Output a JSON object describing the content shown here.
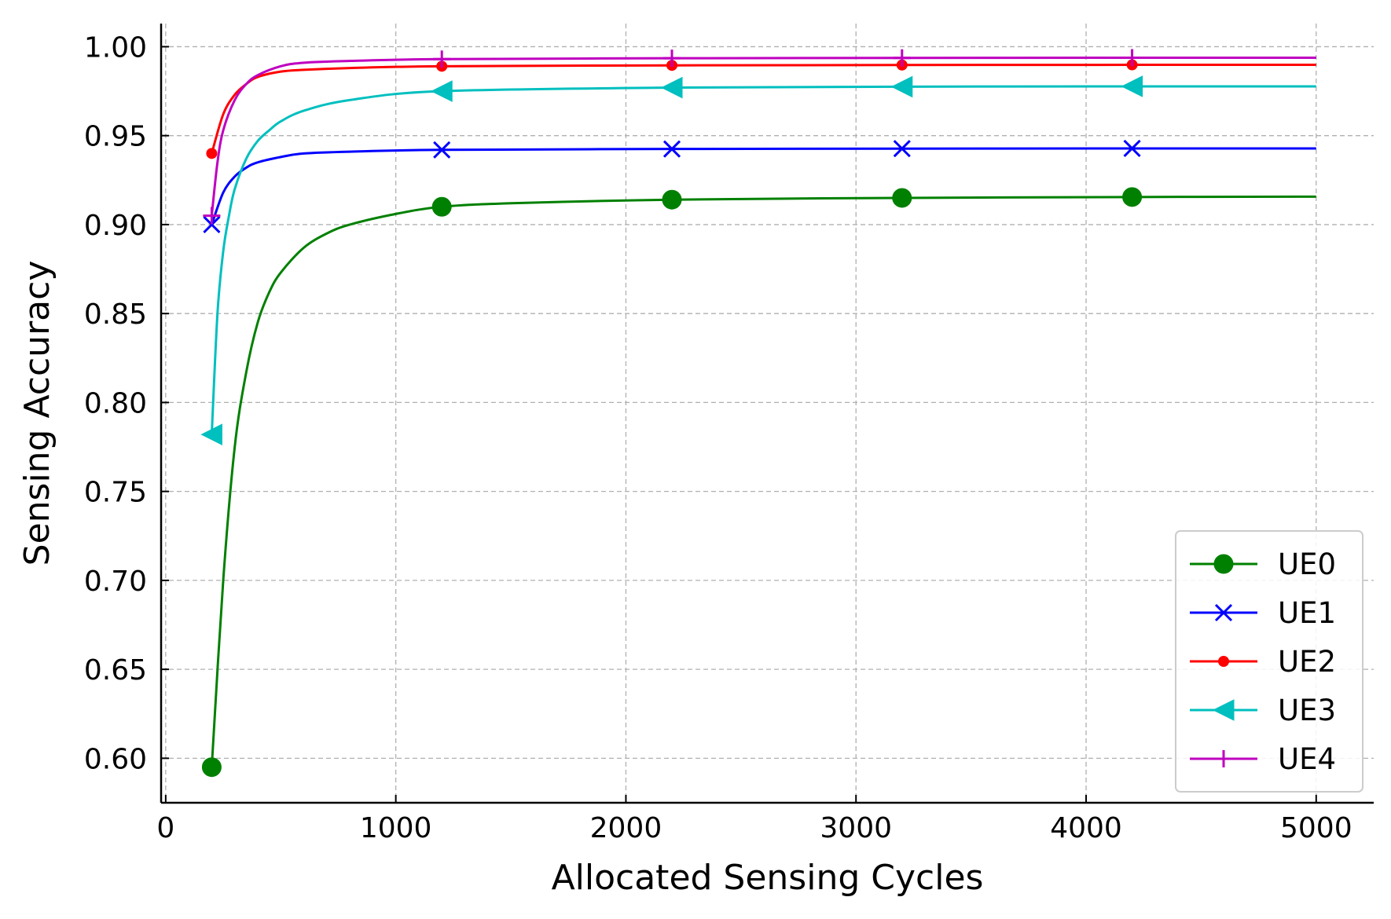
{
  "chart_data": {
    "type": "line",
    "xlabel": "Allocated Sensing Cycles",
    "ylabel": "Sensing Accuracy",
    "xlim": [
      -20,
      5250
    ],
    "ylim": [
      0.575,
      1.013
    ],
    "xticks": [
      0,
      1000,
      2000,
      3000,
      4000,
      5000
    ],
    "xtick_labels": [
      "0",
      "1000",
      "2000",
      "3000",
      "4000",
      "5000"
    ],
    "yticks": [
      0.6,
      0.65,
      0.7,
      0.75,
      0.8,
      0.85,
      0.9,
      0.95,
      1.0
    ],
    "ytick_labels": [
      "0.60",
      "0.65",
      "0.70",
      "0.75",
      "0.80",
      "0.85",
      "0.90",
      "0.95",
      "1.00"
    ],
    "grid": true,
    "legend_position": "lower-right",
    "marker_x": [
      200,
      1200,
      2200,
      3200,
      4200
    ],
    "series": [
      {
        "name": "UE0",
        "color": "#008000",
        "marker": "circle",
        "x": [
          200,
          250,
          300,
          350,
          400,
          450,
          500,
          600,
          700,
          800,
          1000,
          1200,
          1500,
          2200,
          3200,
          4200,
          5000
        ],
        "y": [
          0.595,
          0.7,
          0.775,
          0.817,
          0.845,
          0.862,
          0.873,
          0.887,
          0.895,
          0.9,
          0.906,
          0.91,
          0.912,
          0.914,
          0.915,
          0.9155,
          0.9157
        ]
      },
      {
        "name": "UE1",
        "color": "#0000ff",
        "marker": "x",
        "x": [
          200,
          250,
          300,
          350,
          400,
          500,
          600,
          800,
          1200,
          2200,
          3200,
          4200,
          5000
        ],
        "y": [
          0.9,
          0.918,
          0.927,
          0.932,
          0.935,
          0.938,
          0.94,
          0.941,
          0.942,
          0.9425,
          0.9427,
          0.9428,
          0.9428
        ]
      },
      {
        "name": "UE2",
        "color": "#ff0000",
        "marker": "dot",
        "x": [
          200,
          250,
          300,
          350,
          400,
          500,
          600,
          800,
          1200,
          2200,
          3200,
          4200,
          5000
        ],
        "y": [
          0.94,
          0.962,
          0.973,
          0.979,
          0.983,
          0.986,
          0.987,
          0.988,
          0.989,
          0.9895,
          0.9897,
          0.9898,
          0.9898
        ]
      },
      {
        "name": "UE3",
        "color": "#00bfbf",
        "marker": "triangle-left",
        "x": [
          200,
          225,
          250,
          275,
          300,
          350,
          400,
          450,
          500,
          600,
          800,
          1200,
          2200,
          3200,
          4200,
          5000
        ],
        "y": [
          0.782,
          0.85,
          0.885,
          0.905,
          0.92,
          0.937,
          0.947,
          0.953,
          0.958,
          0.964,
          0.97,
          0.975,
          0.977,
          0.9775,
          0.9777,
          0.9777
        ]
      },
      {
        "name": "UE4",
        "color": "#bf00bf",
        "marker": "plus",
        "x": [
          200,
          225,
          250,
          300,
          350,
          400,
          500,
          600,
          800,
          1200,
          2200,
          3200,
          4200,
          5000
        ],
        "y": [
          0.905,
          0.935,
          0.953,
          0.97,
          0.979,
          0.984,
          0.989,
          0.991,
          0.992,
          0.993,
          0.9935,
          0.9937,
          0.9938,
          0.9938
        ]
      }
    ]
  }
}
